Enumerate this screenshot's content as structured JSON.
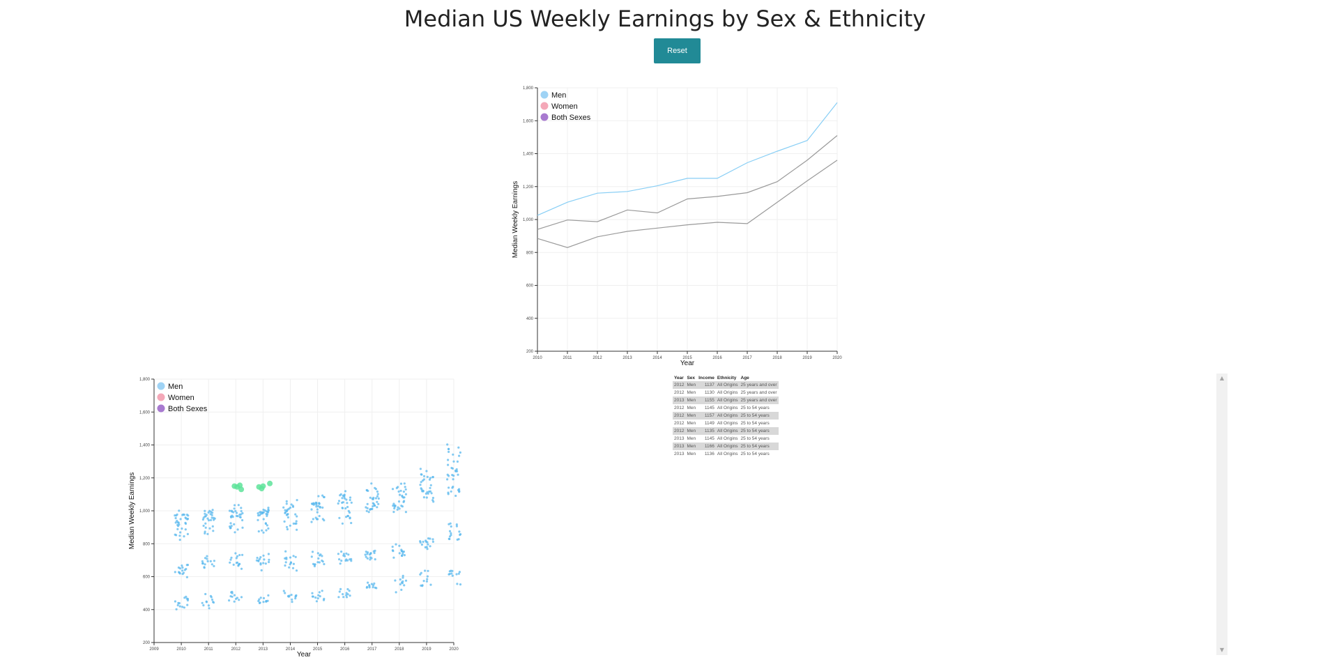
{
  "page": {
    "title": "Median US Weekly Earnings by Sex & Ethnicity",
    "reset_label": "Reset"
  },
  "colors": {
    "men": "#9fd3f5",
    "women": "#f4a8b8",
    "both": "#a87ad0",
    "men_line": "#87cef5",
    "other_line": "#999999",
    "scatter_point": "#5ab8ee",
    "selected_point": "#5ee39a",
    "button": "#218a96"
  },
  "legend": [
    {
      "label": "Men",
      "color_key": "men"
    },
    {
      "label": "Women",
      "color_key": "women"
    },
    {
      "label": "Both Sexes",
      "color_key": "both"
    }
  ],
  "chart_data": [
    {
      "type": "line",
      "xlabel": "Year",
      "ylabel": "Median Weekly Earnings",
      "xlim": [
        2010,
        2020
      ],
      "ylim": [
        200,
        1800
      ],
      "x_ticks": [
        2010,
        2011,
        2012,
        2013,
        2014,
        2015,
        2016,
        2017,
        2018,
        2019,
        2020
      ],
      "y_ticks": [
        200,
        400,
        600,
        800,
        1000,
        1200,
        1400,
        1600,
        1800
      ],
      "y_tick_labels": [
        "200",
        "400",
        "600",
        "800",
        "1,000",
        "1,200",
        "1,400",
        "1,600",
        "1,800"
      ],
      "grid": true,
      "legend_position": "top-left",
      "series": [
        {
          "color_key": "men_line",
          "x": [
            2010,
            2011,
            2012,
            2013,
            2014,
            2015,
            2016,
            2017,
            2018,
            2019,
            2020
          ],
          "values": [
            1025,
            1105,
            1160,
            1170,
            1205,
            1250,
            1250,
            1345,
            1415,
            1480,
            1710
          ]
        },
        {
          "color_key": "other_line",
          "x": [
            2010,
            2011,
            2012,
            2013,
            2014,
            2015,
            2016,
            2017,
            2018,
            2019,
            2020
          ],
          "values": [
            940,
            997,
            987,
            1058,
            1040,
            1125,
            1140,
            1163,
            1230,
            1360,
            1510
          ]
        },
        {
          "color_key": "other_line",
          "x": [
            2010,
            2011,
            2012,
            2013,
            2014,
            2015,
            2016,
            2017,
            2018,
            2019,
            2020
          ],
          "values": [
            885,
            830,
            895,
            928,
            948,
            968,
            983,
            975,
            1105,
            1235,
            1360
          ]
        }
      ]
    },
    {
      "type": "scatter",
      "xlabel": "Year",
      "ylabel": "Median Weekly Earnings",
      "xlim": [
        2009,
        2020
      ],
      "ylim": [
        200,
        1800
      ],
      "x_ticks": [
        2009,
        2010,
        2011,
        2012,
        2013,
        2014,
        2015,
        2016,
        2017,
        2018,
        2019,
        2020
      ],
      "y_ticks": [
        200,
        400,
        600,
        800,
        1000,
        1200,
        1400,
        1600,
        1800
      ],
      "y_tick_labels": [
        "200",
        "400",
        "600",
        "800",
        "1,000",
        "1,200",
        "1,400",
        "1,600",
        "1,800"
      ],
      "grid": true,
      "legend_position": "top-left",
      "clusters": [
        {
          "year": 2010,
          "bands": [
            [
              950,
              60,
              24
            ],
            [
              860,
              50,
              10
            ],
            [
              640,
              60,
              16
            ],
            [
              440,
              60,
              14
            ]
          ]
        },
        {
          "year": 2011,
          "bands": [
            [
              960,
              60,
              22
            ],
            [
              890,
              40,
              8
            ],
            [
              680,
              60,
              14
            ],
            [
              450,
              50,
              12
            ]
          ]
        },
        {
          "year": 2012,
          "bands": [
            [
              980,
              70,
              24
            ],
            [
              900,
              40,
              8
            ],
            [
              690,
              70,
              16
            ],
            [
              470,
              60,
              12
            ]
          ]
        },
        {
          "year": 2013,
          "bands": [
            [
              980,
              70,
              24
            ],
            [
              900,
              40,
              8
            ],
            [
              690,
              70,
              16
            ],
            [
              460,
              50,
              12
            ]
          ]
        },
        {
          "year": 2014,
          "bands": [
            [
              1000,
              70,
              22
            ],
            [
              920,
              40,
              8
            ],
            [
              690,
              70,
              16
            ],
            [
              480,
              40,
              12
            ]
          ]
        },
        {
          "year": 2015,
          "bands": [
            [
              1050,
              80,
              24
            ],
            [
              940,
              40,
              8
            ],
            [
              700,
              70,
              16
            ],
            [
              480,
              50,
              12
            ]
          ]
        },
        {
          "year": 2016,
          "bands": [
            [
              1050,
              90,
              24
            ],
            [
              960,
              40,
              8
            ],
            [
              720,
              70,
              16
            ],
            [
              500,
              50,
              12
            ]
          ]
        },
        {
          "year": 2017,
          "bands": [
            [
              1070,
              100,
              24
            ],
            [
              1010,
              40,
              8
            ],
            [
              730,
              60,
              16
            ],
            [
              540,
              50,
              12
            ]
          ]
        },
        {
          "year": 2018,
          "bands": [
            [
              1090,
              100,
              24
            ],
            [
              1030,
              50,
              8
            ],
            [
              760,
              60,
              16
            ],
            [
              560,
              60,
              12
            ]
          ]
        },
        {
          "year": 2019,
          "bands": [
            [
              1150,
              120,
              24
            ],
            [
              1110,
              40,
              8
            ],
            [
              810,
              60,
              16
            ],
            [
              590,
              60,
              12
            ]
          ]
        },
        {
          "year": 2020,
          "bands": [
            [
              1250,
              200,
              28
            ],
            [
              1120,
              40,
              8
            ],
            [
              870,
              80,
              16
            ],
            [
              610,
              70,
              12
            ]
          ]
        }
      ],
      "selected_points": [
        {
          "x": 2011.95,
          "y": 1150
        },
        {
          "x": 2012.05,
          "y": 1145
        },
        {
          "x": 2012.15,
          "y": 1155
        },
        {
          "x": 2012.2,
          "y": 1130
        },
        {
          "x": 2012.85,
          "y": 1145
        },
        {
          "x": 2012.95,
          "y": 1135
        },
        {
          "x": 2013.0,
          "y": 1150
        },
        {
          "x": 2013.25,
          "y": 1166
        }
      ]
    }
  ],
  "table": {
    "headers": [
      "Year",
      "Sex",
      "Income",
      "Ethnicity",
      "Age"
    ],
    "rows": [
      [
        "2012",
        "Men",
        "1137",
        "All Origins",
        "25 years and over"
      ],
      [
        "2012",
        "Men",
        "1130",
        "All Origins",
        "25 years and over"
      ],
      [
        "2013",
        "Men",
        "1155",
        "All Origins",
        "25 years and over"
      ],
      [
        "2012",
        "Men",
        "1145",
        "All Origins",
        "25 to 54 years"
      ],
      [
        "2012",
        "Men",
        "1157",
        "All Origins",
        "25 to 54 years"
      ],
      [
        "2012",
        "Men",
        "1149",
        "All Origins",
        "25 to 54 years"
      ],
      [
        "2012",
        "Men",
        "1135",
        "All Origins",
        "25 to 54 years"
      ],
      [
        "2013",
        "Men",
        "1145",
        "All Origins",
        "25 to 54 years"
      ],
      [
        "2013",
        "Men",
        "1166",
        "All Origins",
        "25 to 54 years"
      ],
      [
        "2013",
        "Men",
        "1136",
        "All Origins",
        "25 to 54 years"
      ]
    ]
  },
  "scrollbar": {
    "up_icon": "▲",
    "down_icon": "▼"
  }
}
